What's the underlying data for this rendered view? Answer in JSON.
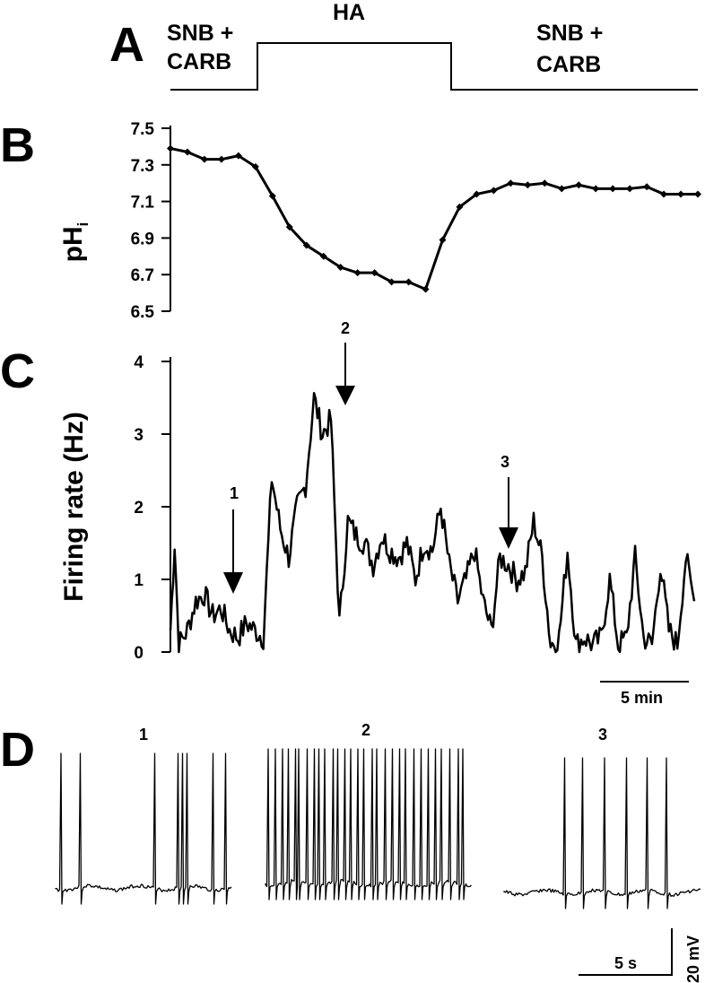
{
  "panel_letters": {
    "a": "A",
    "b": "B",
    "c": "C",
    "d": "D"
  },
  "panel_a": {
    "labels": {
      "left_top": "SNB +",
      "left_bottom": "CARB",
      "middle": "HA",
      "right_top": "SNB +",
      "right_bottom": "CARB"
    }
  },
  "panel_b": {
    "ylabel_main": "pH",
    "ylabel_sub": "i",
    "yticks": [
      "7.5",
      "7.3",
      "7.1",
      "6.9",
      "6.7",
      "6.5"
    ]
  },
  "panel_c": {
    "ylabel": "Firing rate (Hz)",
    "yticks": [
      "4",
      "3",
      "2",
      "1",
      "0"
    ],
    "arrow_labels": [
      "1",
      "2",
      "3"
    ],
    "scalebar_label": "5 min"
  },
  "panel_d": {
    "trace_labels": [
      "1",
      "2",
      "3"
    ],
    "time_scale_label": "5 s",
    "voltage_scale_label": "20 mV"
  },
  "chart_data": [
    {
      "panel": "B",
      "type": "line",
      "ylabel": "pHi",
      "ylim": [
        6.5,
        7.5
      ],
      "yticks": [
        6.5,
        6.7,
        6.9,
        7.1,
        7.3,
        7.5
      ],
      "x_unit": "min",
      "x": [
        0,
        1,
        2,
        3,
        4,
        5,
        6,
        7,
        8,
        9,
        10,
        11,
        12,
        13,
        14,
        15,
        16,
        17,
        18,
        19,
        20,
        21,
        22,
        23,
        24,
        25,
        26,
        27,
        28,
        29,
        30,
        31
      ],
      "values": [
        7.39,
        7.37,
        7.33,
        7.33,
        7.35,
        7.29,
        7.13,
        6.96,
        6.86,
        6.8,
        6.74,
        6.71,
        6.71,
        6.66,
        6.66,
        6.62,
        6.89,
        7.07,
        7.14,
        7.16,
        7.2,
        7.19,
        7.2,
        7.17,
        7.19,
        7.17,
        7.17,
        7.17,
        7.18,
        7.14,
        7.14,
        7.14
      ]
    },
    {
      "panel": "C",
      "type": "line",
      "ylabel": "Firing rate (Hz)",
      "ylim": [
        0,
        4
      ],
      "yticks": [
        0,
        1,
        2,
        3,
        4
      ],
      "x_unit": "min",
      "x": [
        0,
        0.25,
        0.5,
        1,
        1.5,
        2,
        2.5,
        3,
        3.5,
        4,
        4.5,
        5,
        5.5,
        6,
        6.5,
        7,
        7.5,
        8,
        8.5,
        9,
        9.5,
        10,
        10.5,
        11,
        11.5,
        12,
        12.5,
        13,
        13.5,
        14,
        14.5,
        15,
        15.5,
        16,
        16.5,
        17,
        17.5,
        18,
        18.5,
        19,
        19.5,
        20,
        20.5,
        21,
        21.5,
        22,
        22.5,
        23,
        23.5,
        24,
        24.5,
        25,
        25.5,
        26,
        26.5,
        27,
        27.5,
        28,
        28.5,
        29,
        29.5,
        30,
        30.5,
        31
      ],
      "values": [
        0.3,
        1.5,
        0.1,
        0.3,
        0.7,
        0.8,
        0.5,
        0.6,
        0.3,
        0.2,
        0.4,
        0.3,
        0.2,
        2.4,
        1.7,
        1.3,
        2.0,
        2.3,
        3.5,
        3.0,
        3.2,
        0.4,
        1.8,
        1.6,
        1.5,
        1.2,
        1.6,
        1.4,
        1.3,
        1.5,
        1.0,
        1.5,
        1.4,
        2.0,
        1.2,
        0.7,
        1.0,
        1.4,
        0.7,
        0.3,
        1.3,
        1.2,
        1.0,
        1.1,
        1.8,
        1.3,
        0.1,
        0.2,
        1.4,
        0.1,
        0.2,
        0.1,
        0.2,
        1.0,
        0.1,
        0.2,
        1.3,
        0.2,
        0.1,
        1.2,
        0.3,
        0.1,
        1.3,
        0.7
      ]
    }
  ]
}
